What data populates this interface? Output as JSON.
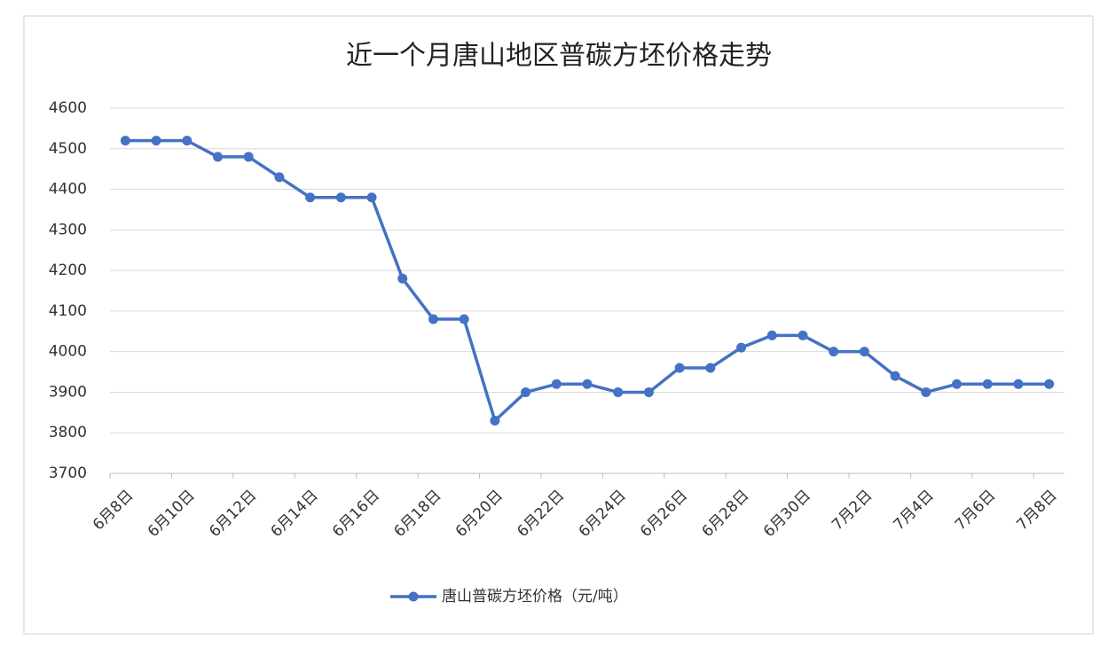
{
  "chart_data": {
    "type": "line",
    "title": "近一个月唐山地区普碳方坯价格走势",
    "categories": [
      "6月8日",
      null,
      "6月10日",
      null,
      "6月12日",
      null,
      "6月14日",
      null,
      "6月16日",
      null,
      "6月18日",
      null,
      "6月20日",
      null,
      "6月22日",
      null,
      "6月24日",
      null,
      "6月26日",
      null,
      "6月28日",
      null,
      "6月30日",
      null,
      "7月2日",
      null,
      "7月4日",
      null,
      "7月6日",
      null,
      "7月8日"
    ],
    "series": [
      {
        "name": "唐山普碳方坯价格（元/吨）",
        "color": "#4472c4",
        "values": [
          4520,
          4520,
          4520,
          4480,
          4480,
          4430,
          4380,
          4380,
          4380,
          4180,
          4080,
          4080,
          3830,
          3900,
          3920,
          3920,
          3900,
          3900,
          3960,
          3960,
          4010,
          4040,
          4040,
          4000,
          4000,
          3940,
          3900,
          3920,
          3920,
          3920,
          3920
        ]
      }
    ],
    "ylim": [
      3700,
      4600
    ],
    "yticks": [
      3700,
      3800,
      3900,
      4000,
      4100,
      4200,
      4300,
      4400,
      4500,
      4600
    ],
    "grid": true,
    "legend": "bottom"
  }
}
